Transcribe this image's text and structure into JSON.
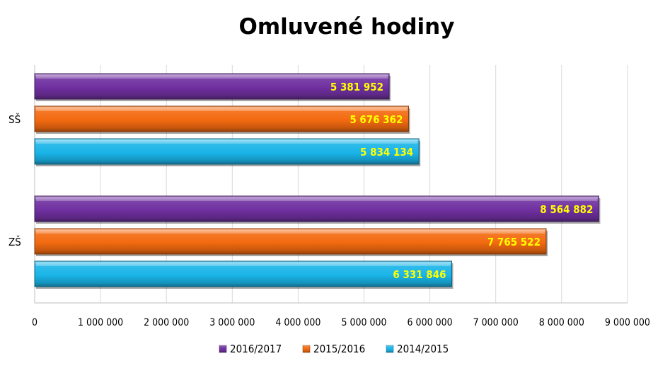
{
  "chart_data": {
    "type": "bar",
    "orientation": "horizontal",
    "title": "Omluvené hodiny",
    "categories": [
      "SŠ",
      "ZŠ"
    ],
    "series": [
      {
        "name": "2016/2017",
        "values": [
          5381952,
          8564882
        ],
        "labels": [
          "5 381 952",
          "8 564 882"
        ],
        "color": "#7030a0"
      },
      {
        "name": "2015/2016",
        "values": [
          5676362,
          7765522
        ],
        "labels": [
          "5 676 362",
          "7 765 522"
        ],
        "color": "#f36a10"
      },
      {
        "name": "2014/2015",
        "values": [
          5834134,
          6331846
        ],
        "labels": [
          "5 834 134",
          "6 331 846"
        ],
        "color": "#1ab4e8"
      }
    ],
    "xlim": [
      0,
      9000000
    ],
    "xticks": [
      0,
      1000000,
      2000000,
      3000000,
      4000000,
      5000000,
      6000000,
      7000000,
      8000000,
      9000000
    ],
    "xtick_labels": [
      "0",
      "1 000 000",
      "2 000 000",
      "3 000 000",
      "4 000 000",
      "5 000 000",
      "6 000 000",
      "7 000 000",
      "8 000 000",
      "9 000 000"
    ],
    "data_label_color": "#ffff00",
    "grid": true,
    "legend_position": "bottom"
  }
}
